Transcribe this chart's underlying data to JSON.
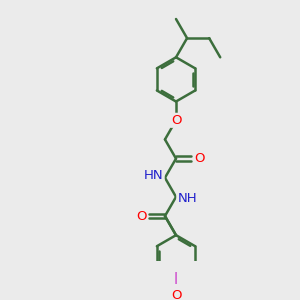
{
  "bg_color": "#ebebeb",
  "bond_color": "#3c6e3c",
  "bond_width": 1.8,
  "atom_colors": {
    "O": "#ff0000",
    "N": "#2020cc",
    "I": "#cc44cc",
    "C": "#3c6e3c"
  },
  "font_size": 8.5,
  "fig_size": [
    3.0,
    3.0
  ],
  "dpi": 100,
  "xlim": [
    0,
    10
  ],
  "ylim": [
    0,
    10
  ]
}
